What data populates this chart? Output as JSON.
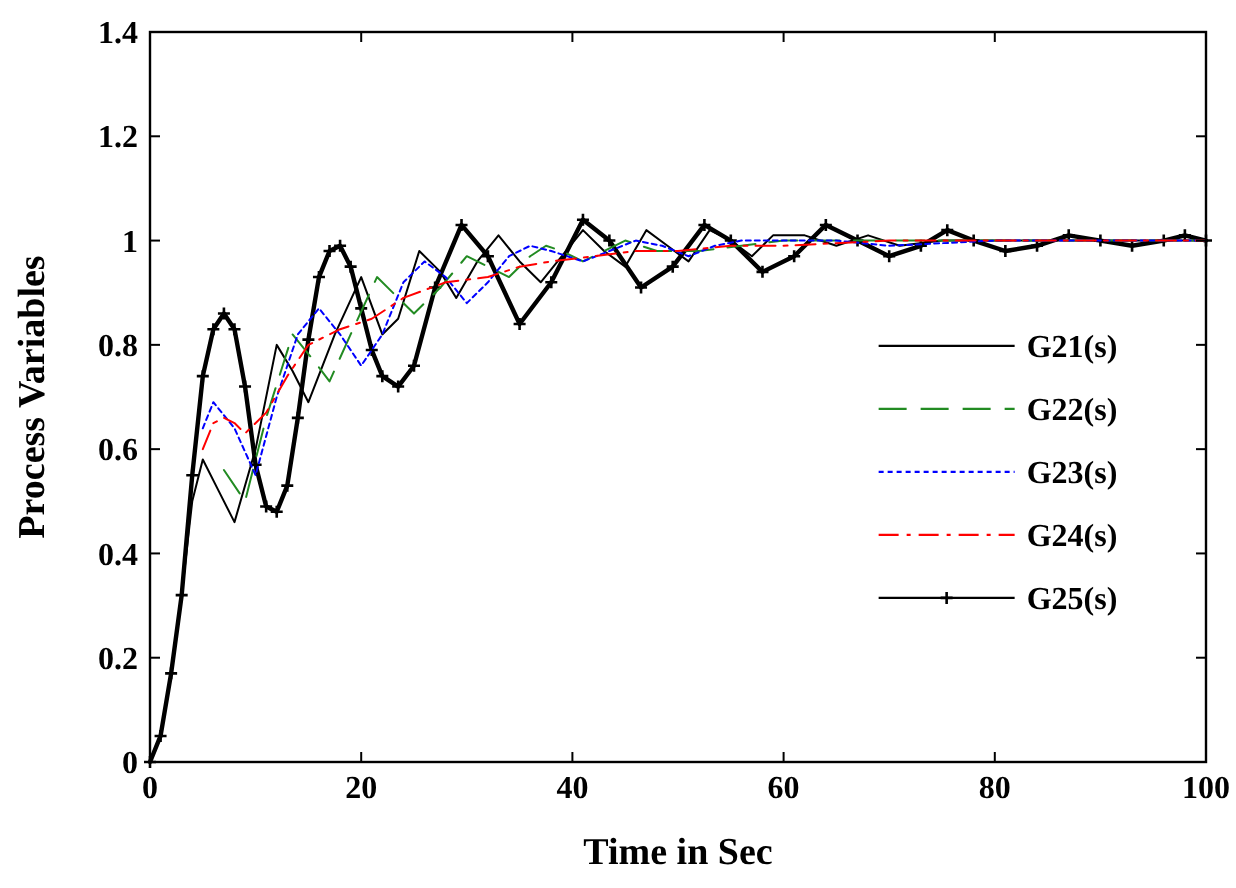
{
  "chart_data": {
    "type": "line",
    "xlabel": "Time in Sec",
    "ylabel": "Process Variables",
    "xlim": [
      0,
      100
    ],
    "xticks": [
      0,
      20,
      40,
      60,
      80,
      100
    ],
    "ylim": [
      0,
      1.4
    ],
    "yticks": [
      0,
      0.2,
      0.4,
      0.6,
      0.8,
      1,
      1.2,
      1.4
    ],
    "grid": false,
    "legend": "right",
    "series": [
      {
        "name": "G21(s)",
        "color": "#000000",
        "line_style": "solid",
        "marker": "none",
        "x": [
          0,
          1,
          2,
          3,
          4,
          5,
          6.5,
          8,
          10,
          12,
          13.5,
          15,
          17.5,
          20,
          22,
          23.5,
          25.5,
          27.5,
          29,
          31,
          33,
          35,
          37,
          39,
          41,
          43,
          45,
          47,
          49,
          51,
          53,
          55,
          57,
          59,
          62,
          65,
          68,
          71,
          75,
          80,
          85,
          90,
          95,
          100
        ],
        "values": [
          0,
          0.05,
          0.17,
          0.32,
          0.5,
          0.58,
          0.52,
          0.46,
          0.6,
          0.8,
          0.75,
          0.69,
          0.82,
          0.93,
          0.82,
          0.85,
          0.98,
          0.94,
          0.89,
          0.96,
          1.01,
          0.96,
          0.92,
          0.97,
          1.02,
          0.98,
          0.95,
          1.02,
          0.99,
          0.96,
          1.02,
          1.0,
          0.97,
          1.01,
          1.01,
          0.99,
          1.01,
          0.99,
          1.0,
          1.0,
          1.0,
          1.0,
          1.0,
          1.0
        ]
      },
      {
        "name": "G22(s)",
        "color": "#228b22",
        "line_style": "dashed",
        "marker": "none",
        "x": [
          7,
          9,
          11,
          13.5,
          15.5,
          17,
          19,
          21.5,
          23.5,
          25,
          27.5,
          30,
          32,
          34,
          36,
          37.5,
          39,
          41,
          43,
          45,
          48,
          52,
          56,
          60,
          70,
          80,
          90,
          100
        ],
        "values": [
          0.56,
          0.5,
          0.66,
          0.82,
          0.77,
          0.73,
          0.82,
          0.93,
          0.89,
          0.86,
          0.91,
          0.97,
          0.95,
          0.93,
          0.97,
          0.99,
          0.98,
          0.96,
          0.98,
          1.0,
          0.98,
          0.98,
          0.99,
          1.0,
          1.0,
          1.0,
          1.0,
          1.0
        ]
      },
      {
        "name": "G23(s)",
        "color": "#0000ff",
        "line_style": "dotted",
        "marker": "none",
        "x": [
          5,
          6,
          8,
          10,
          12,
          14,
          16,
          18,
          20,
          22,
          24,
          26,
          28,
          30,
          32,
          34,
          36,
          38,
          41,
          43.5,
          46,
          48.5,
          51,
          53.5,
          56,
          60,
          65,
          70,
          80,
          90,
          100
        ],
        "values": [
          0.64,
          0.69,
          0.64,
          0.55,
          0.7,
          0.82,
          0.87,
          0.82,
          0.76,
          0.82,
          0.92,
          0.96,
          0.93,
          0.88,
          0.92,
          0.97,
          0.99,
          0.98,
          0.96,
          0.98,
          1.0,
          0.99,
          0.97,
          0.99,
          1.0,
          1.0,
          1.0,
          0.99,
          1.0,
          1.0,
          1.0
        ]
      },
      {
        "name": "G24(s)",
        "color": "#ff0000",
        "line_style": "dashdot",
        "marker": "none",
        "x": [
          5,
          6,
          7,
          8,
          9,
          11,
          13,
          15,
          18,
          21,
          24,
          28,
          32,
          35,
          38,
          42,
          46,
          50,
          55,
          60,
          70,
          80,
          90,
          100
        ],
        "values": [
          0.6,
          0.65,
          0.66,
          0.65,
          0.63,
          0.67,
          0.74,
          0.8,
          0.83,
          0.85,
          0.89,
          0.92,
          0.93,
          0.95,
          0.96,
          0.97,
          0.98,
          0.98,
          0.99,
          0.99,
          1.0,
          1.0,
          1.0,
          1.0
        ]
      },
      {
        "name": "G25(s)",
        "color": "#000000",
        "line_style": "solid",
        "marker": "cross",
        "x": [
          0,
          1,
          2,
          3,
          4,
          5,
          6,
          7,
          8,
          9,
          10,
          11,
          12,
          13,
          14,
          15,
          16,
          17,
          18,
          19,
          20,
          21,
          22,
          23.5,
          25,
          27,
          29.5,
          32,
          35,
          38,
          41,
          43.5,
          46.5,
          49.5,
          52.5,
          55,
          58,
          61,
          64,
          67,
          70,
          73,
          75.5,
          78,
          81,
          84,
          87,
          90,
          93,
          96,
          98,
          100
        ],
        "values": [
          0,
          0.05,
          0.17,
          0.32,
          0.55,
          0.74,
          0.83,
          0.86,
          0.83,
          0.72,
          0.57,
          0.49,
          0.48,
          0.53,
          0.66,
          0.81,
          0.93,
          0.98,
          0.99,
          0.95,
          0.87,
          0.79,
          0.74,
          0.72,
          0.76,
          0.91,
          1.03,
          0.97,
          0.84,
          0.92,
          1.04,
          1.0,
          0.91,
          0.95,
          1.03,
          1.0,
          0.94,
          0.97,
          1.03,
          1.0,
          0.97,
          0.99,
          1.02,
          1.0,
          0.98,
          0.99,
          1.01,
          1.0,
          0.99,
          1.0,
          1.01,
          1.0
        ]
      }
    ]
  }
}
